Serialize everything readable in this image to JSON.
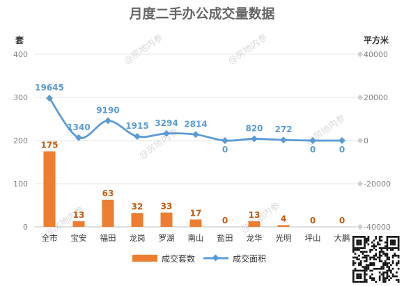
{
  "chart_data": {
    "type": "bar",
    "title": "月度二手办公成交量数据",
    "categories": [
      "全市",
      "宝安",
      "福田",
      "龙岗",
      "罗湖",
      "南山",
      "盐田",
      "龙华",
      "光明",
      "坪山",
      "大鹏"
    ],
    "series": [
      {
        "name": "成交套数",
        "type": "bar",
        "axis": "left",
        "values": [
          175,
          13,
          63,
          32,
          33,
          17,
          0,
          13,
          4,
          0,
          0
        ],
        "color": "#ed7d31"
      },
      {
        "name": "成交面积",
        "type": "line",
        "axis": "right",
        "values": [
          19645,
          1340,
          9190,
          1915,
          3294,
          2814,
          0,
          820,
          272,
          0,
          0
        ],
        "color": "#5b9bd5"
      }
    ],
    "y_left": {
      "label": "套",
      "ticks": [
        0,
        100,
        200,
        300,
        400
      ],
      "ylim": [
        0,
        400
      ]
    },
    "y_right": {
      "label": "平方米",
      "ticks": [
        -40000,
        -20000,
        0,
        20000,
        40000
      ],
      "ylim": [
        -40000,
        40000
      ]
    },
    "grid": true,
    "legend_position": "bottom"
  },
  "watermark": "@房地内参",
  "qr_code": "qr-code"
}
